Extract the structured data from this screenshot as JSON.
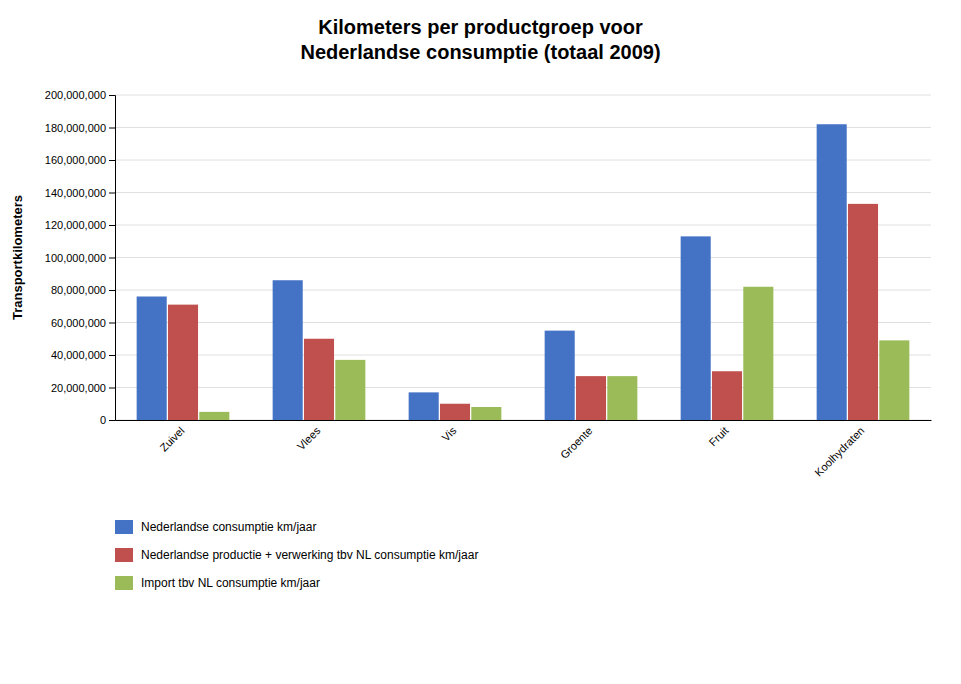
{
  "chart_data": {
    "type": "bar",
    "title": "Kilometers per productgroep voor\nNederlandse consumptie (totaal 2009)",
    "y_label": "Transportkilometers",
    "categories": [
      "Zuivel",
      "Vlees",
      "Vis",
      "Groente",
      "Fruit",
      "Koolhydraten"
    ],
    "series": [
      {
        "name": "Nederlandse consumptie km/jaar",
        "color": "#4472C4",
        "values": [
          76000000,
          86000000,
          17000000,
          55000000,
          113000000,
          182000000
        ]
      },
      {
        "name": "Nederlandse productie + verwerking tbv NL consumptie km/jaar",
        "color": "#C0504D",
        "values": [
          71000000,
          50000000,
          10000000,
          27000000,
          30000000,
          133000000
        ]
      },
      {
        "name": "Import tbv NL consumptie km/jaar",
        "color": "#9BBB59",
        "values": [
          5000000,
          37000000,
          8000000,
          27000000,
          82000000,
          49000000
        ]
      }
    ],
    "ylim": [
      0,
      200000000
    ],
    "yticks": [
      0,
      {
        "value": 20000000,
        "label": "20,000,000"
      },
      {
        "value": 40000000,
        "label": "40,000,000"
      },
      {
        "value": 60000000,
        "label": "60,000,000"
      },
      {
        "value": 80000000,
        "label": "80,000,000"
      },
      {
        "value": 100000000,
        "label": "100,000,000"
      },
      {
        "value": 120000000,
        "label": "120,000,000"
      },
      {
        "value": 140000000,
        "label": "140,000,000"
      },
      {
        "value": 160000000,
        "label": "160,000,000"
      },
      {
        "value": 180000000,
        "label": "180,000,000"
      },
      {
        "value": 200000000,
        "label": "200,000,000"
      }
    ],
    "grid": true,
    "legend": "bottom"
  }
}
